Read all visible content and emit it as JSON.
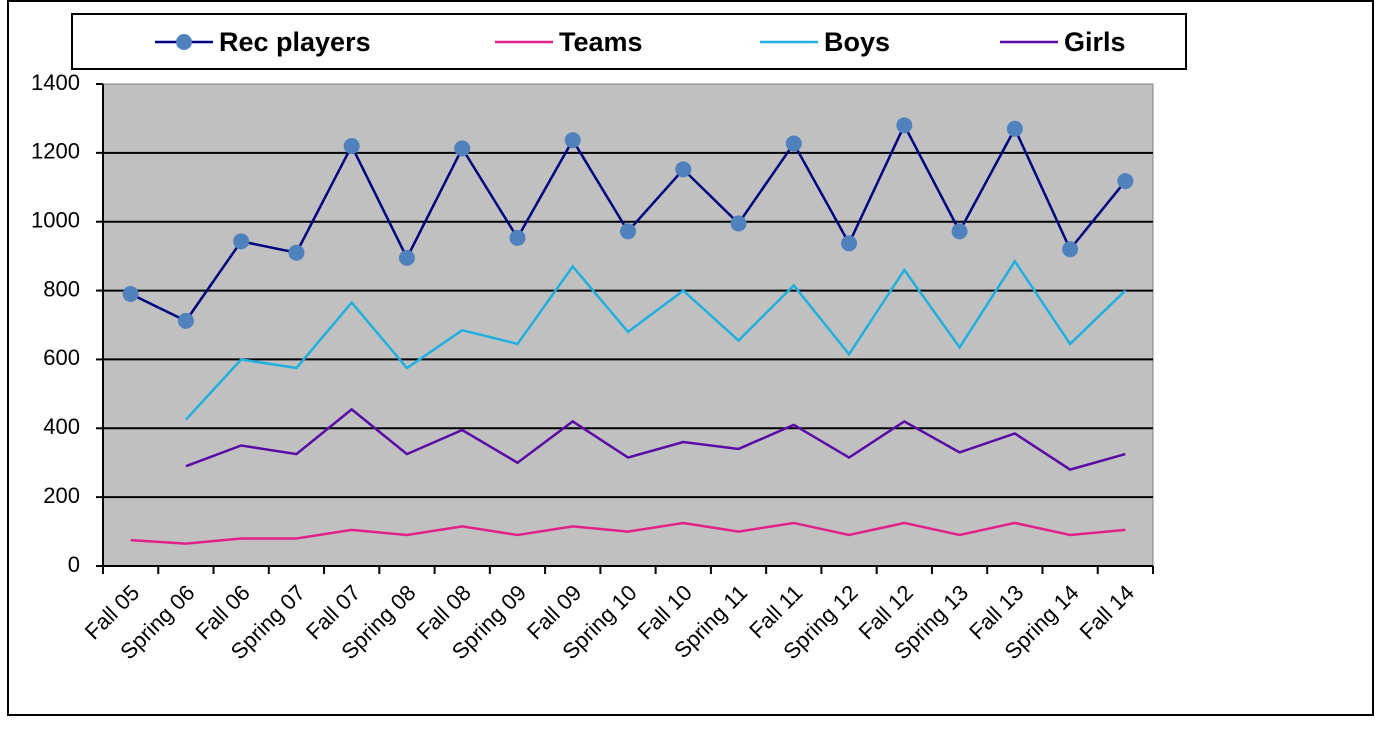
{
  "chart_data": {
    "type": "line",
    "categories": [
      "Fall 05",
      "Spring 06",
      "Fall 06",
      "Spring 07",
      "Fall 07",
      "Spring 08",
      "Fall 08",
      "Spring 09",
      "Fall 09",
      "Spring 10",
      "Fall 10",
      "Spring 11",
      "Fall 11",
      "Spring 12",
      "Fall 12",
      "Spring 13",
      "Fall 13",
      "Spring 14",
      "Fall 14"
    ],
    "series": [
      {
        "name": "Rec players",
        "color": "#000080",
        "marker_color": "#4f81bd",
        "values": [
          790,
          712,
          943,
          910,
          1220,
          895,
          1213,
          953,
          1237,
          972,
          1152,
          995,
          1227,
          937,
          1280,
          972,
          1270,
          920,
          1118
        ]
      },
      {
        "name": "Teams",
        "color": "#e0218a",
        "values": [
          75,
          65,
          80,
          80,
          105,
          90,
          115,
          90,
          115,
          100,
          125,
          100,
          125,
          90,
          125,
          90,
          125,
          90,
          105
        ]
      },
      {
        "name": "Boys",
        "color": "#1fb0e0",
        "values": [
          null,
          425,
          600,
          575,
          765,
          575,
          685,
          645,
          870,
          680,
          800,
          655,
          815,
          615,
          860,
          635,
          885,
          645,
          800
        ]
      },
      {
        "name": "Girls",
        "color": "#5a0aa5",
        "values": [
          null,
          290,
          350,
          325,
          455,
          325,
          395,
          300,
          420,
          315,
          360,
          340,
          410,
          315,
          420,
          330,
          385,
          280,
          325
        ]
      }
    ],
    "ylim": [
      0,
      1400
    ],
    "yticks": [
      0,
      200,
      400,
      600,
      800,
      1000,
      1200,
      1400
    ],
    "grid": true,
    "legend": "top"
  }
}
